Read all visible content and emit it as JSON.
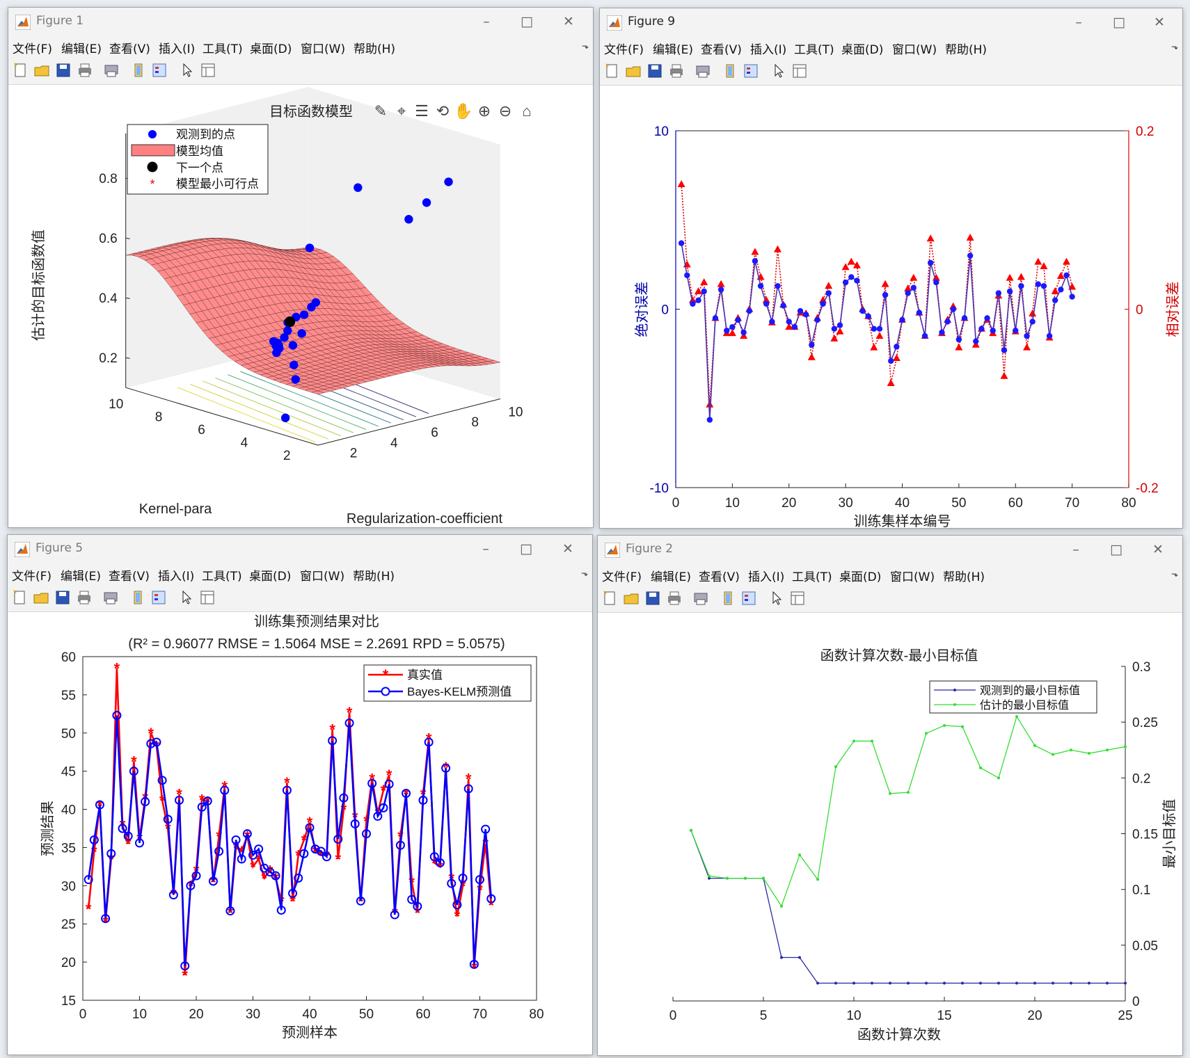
{
  "menu": [
    "文件(F)",
    "编辑(E)",
    "查看(V)",
    "插入(I)",
    "工具(T)",
    "桌面(D)",
    "窗口(W)",
    "帮助(H)"
  ],
  "window_controls": {
    "minimize": "–",
    "maximize": "□",
    "close": "✕"
  },
  "toolbar_icons": [
    "new-figure-icon",
    "open-file-icon",
    "save-icon",
    "print-icon",
    "print-preview-icon",
    "link-icon",
    "legend-toggle-icon",
    "pointer-arrow-icon",
    "property-inspector-icon"
  ],
  "axes_tools": [
    "brush-icon",
    "data-cursor-icon",
    "data-tips-icon",
    "rotate-3d-icon",
    "pan-hand-icon",
    "zoom-in-icon",
    "zoom-out-icon",
    "home-restore-icon"
  ],
  "fig1": {
    "title": "Figure 1",
    "chart_data": {
      "type": "surface",
      "title": "目标函数模型",
      "zlabel": "估计的目标函数值",
      "xlabel": "Kernel-para",
      "ylabel": "Regularization-coefficient",
      "x_ticks": [
        "2",
        "4",
        "6",
        "8",
        "10"
      ],
      "y_ticks": [
        "2",
        "4",
        "6",
        "8",
        "10"
      ],
      "z_ticks": [
        "0.2",
        "0.4",
        "0.6",
        "0.8"
      ],
      "zlim": [
        0.1,
        0.95
      ],
      "legend": [
        "观测到的点",
        "模型均值",
        "下一个点",
        "模型最小可行点"
      ],
      "colors": {
        "observed": "#0000ff",
        "surface": "#ff8080",
        "next": "#000000",
        "min_feasible": "#ff0000"
      }
    }
  },
  "fig9": {
    "title": "Figure 9",
    "chart_data": {
      "type": "line",
      "xlabel": "训练集样本编号",
      "ylabel_left": "绝对误差",
      "ylabel_right": "相对误差",
      "xlim": [
        0,
        80
      ],
      "ylim_left": [
        -10,
        10
      ],
      "ylim_right": [
        -0.2,
        0.2
      ],
      "x_ticks": [
        "0",
        "10",
        "20",
        "30",
        "40",
        "50",
        "60",
        "70",
        "80"
      ],
      "y_ticks_left": [
        "-10",
        "0",
        "10"
      ],
      "y_ticks_right": [
        "-0.2",
        "0",
        "0.2"
      ],
      "abs_error": [
        3.7,
        1.9,
        0.3,
        0.5,
        1.0,
        -6.2,
        -0.5,
        1.1,
        -1.2,
        -1.0,
        -0.6,
        -1.3,
        -0.1,
        2.7,
        1.3,
        0.3,
        -0.7,
        1.3,
        0.2,
        -0.7,
        -1.0,
        -0.1,
        -0.3,
        -2.0,
        -0.6,
        0.3,
        0.9,
        -1.1,
        -0.9,
        1.5,
        1.8,
        1.6,
        -0.1,
        -0.4,
        -1.1,
        -1.1,
        0.8,
        -2.9,
        -2.1,
        -0.6,
        0.9,
        1.2,
        -0.2,
        -1.5,
        2.6,
        1.5,
        -1.3,
        -0.7,
        0.0,
        -1.7,
        -0.5,
        3.0,
        -1.8,
        -1.1,
        -0.5,
        -1.2,
        0.9,
        -2.3,
        1.0,
        -1.2,
        1.3,
        -1.5,
        -0.7,
        1.4,
        1.3,
        -1.5,
        0.5,
        1.1,
        1.9,
        0.7
      ],
      "rel_error": [
        0.14,
        0.05,
        0.01,
        0.02,
        0.03,
        -0.107,
        -0.01,
        0.028,
        -0.027,
        -0.027,
        -0.01,
        -0.03,
        0.0,
        0.064,
        0.036,
        0.01,
        -0.015,
        0.067,
        0.005,
        -0.02,
        -0.02,
        -0.004,
        -0.005,
        -0.054,
        -0.01,
        0.01,
        0.026,
        -0.033,
        -0.025,
        0.047,
        0.053,
        0.049,
        0.0,
        -0.008,
        -0.043,
        -0.03,
        0.028,
        -0.083,
        -0.055,
        -0.012,
        0.023,
        0.035,
        -0.004,
        -0.03,
        0.079,
        0.035,
        -0.027,
        -0.012,
        0.003,
        -0.043,
        -0.01,
        0.08,
        -0.04,
        -0.022,
        -0.012,
        -0.027,
        0.015,
        -0.075,
        0.035,
        -0.025,
        0.036,
        -0.043,
        -0.005,
        0.053,
        0.048,
        -0.032,
        0.02,
        0.037,
        0.053,
        0.025
      ],
      "colors": {
        "abs": "#0000ff",
        "rel": "#ff0000"
      }
    }
  },
  "fig5": {
    "title": "Figure 5",
    "chart_data": {
      "type": "line",
      "title": "训练集预测结果对比",
      "subtitle": "(R² = 0.96077 RMSE = 1.5064 MSE = 2.2691 RPD = 5.0575)",
      "xlabel": "预测样本",
      "ylabel": "预测结果",
      "xlim": [
        0,
        80
      ],
      "ylim": [
        15,
        60
      ],
      "x_ticks": [
        "0",
        "10",
        "20",
        "30",
        "40",
        "50",
        "60",
        "70",
        "80"
      ],
      "y_ticks": [
        "15",
        "20",
        "25",
        "30",
        "35",
        "40",
        "45",
        "50",
        "55",
        "60"
      ],
      "series": [
        {
          "name": "真实值",
          "color": "#ff0000",
          "values": [
            27,
            34.5,
            40.5,
            25.3,
            33.5,
            58.5,
            38,
            35.5,
            46.3,
            36.2,
            41.5,
            50,
            48.3,
            41.2,
            37.5,
            29,
            42,
            18.3,
            30,
            32,
            41.3,
            41,
            30.5,
            36.5,
            43,
            26.5,
            35,
            34.5,
            36.5,
            32.5,
            33.5,
            31,
            32,
            31,
            28,
            43.5,
            28,
            34,
            36,
            38.3,
            34.5,
            34,
            34,
            50.5,
            33.5,
            40,
            52.7,
            39,
            28,
            38.5,
            44,
            39.5,
            42.5,
            44.5,
            26.5,
            36.5,
            42,
            30.5,
            26.5,
            42,
            49.3,
            33,
            32.5,
            45.5,
            31,
            26,
            30,
            44,
            19.3,
            29.5,
            35.5,
            27.5
          ]
        },
        {
          "name": "Bayes-KELM预测值",
          "color": "#0000ff",
          "values": [
            30.8,
            36,
            40.6,
            25.7,
            34.2,
            52.3,
            37.5,
            36.5,
            45,
            35.6,
            41,
            48.6,
            48.8,
            43.8,
            38.7,
            28.8,
            41.2,
            19.5,
            30,
            31.3,
            40.3,
            41.1,
            30.6,
            34.5,
            42.5,
            26.7,
            36,
            33.5,
            36.8,
            34,
            34.8,
            32.3,
            31.8,
            31.3,
            26.8,
            42.5,
            29,
            31,
            34.2,
            37.6,
            34.8,
            34.5,
            33.8,
            49,
            36.1,
            41.5,
            51.3,
            38.1,
            28,
            36.8,
            43.4,
            39.1,
            40.2,
            43.3,
            26.2,
            35.3,
            42.1,
            28.2,
            27.3,
            41.2,
            48.8,
            33.8,
            33,
            45.4,
            30.3,
            27.5,
            31,
            42.7,
            19.7,
            30.8,
            37.4,
            28.3
          ]
        }
      ]
    }
  },
  "fig2": {
    "title": "Figure 2",
    "chart_data": {
      "type": "line",
      "title": "函数计算次数-最小目标值",
      "xlabel": "函数计算次数",
      "ylabel": "最小目标值",
      "xlim": [
        0,
        25
      ],
      "ylim": [
        0,
        0.3
      ],
      "x_ticks": [
        "0",
        "5",
        "10",
        "15",
        "20",
        "25"
      ],
      "y_ticks": [
        "0",
        "0.05",
        "0.1",
        "0.15",
        "0.2",
        "0.25",
        "0.3"
      ],
      "x": [
        1,
        2,
        3,
        4,
        5,
        6,
        7,
        8,
        9,
        10,
        11,
        12,
        13,
        14,
        15,
        16,
        17,
        18,
        19,
        20,
        21,
        22,
        23,
        24,
        25
      ],
      "series": [
        {
          "name": "观测到的最小目标值",
          "color": "#2929a3",
          "values": [
            0.153,
            0.11,
            0.11,
            0.11,
            0.11,
            0.039,
            0.039,
            0.016,
            0.016,
            0.016,
            0.016,
            0.016,
            0.016,
            0.016,
            0.016,
            0.016,
            0.016,
            0.016,
            0.016,
            0.016,
            0.016,
            0.016,
            0.016,
            0.016,
            0.016
          ]
        },
        {
          "name": "估计的最小目标值",
          "color": "#33dd33",
          "values": [
            0.153,
            0.112,
            0.11,
            0.11,
            0.11,
            0.085,
            0.131,
            0.109,
            0.21,
            0.233,
            0.233,
            0.186,
            0.187,
            0.24,
            0.247,
            0.246,
            0.209,
            0.2,
            0.255,
            0.229,
            0.221,
            0.225,
            0.222,
            0.225,
            0.228
          ]
        }
      ]
    }
  }
}
